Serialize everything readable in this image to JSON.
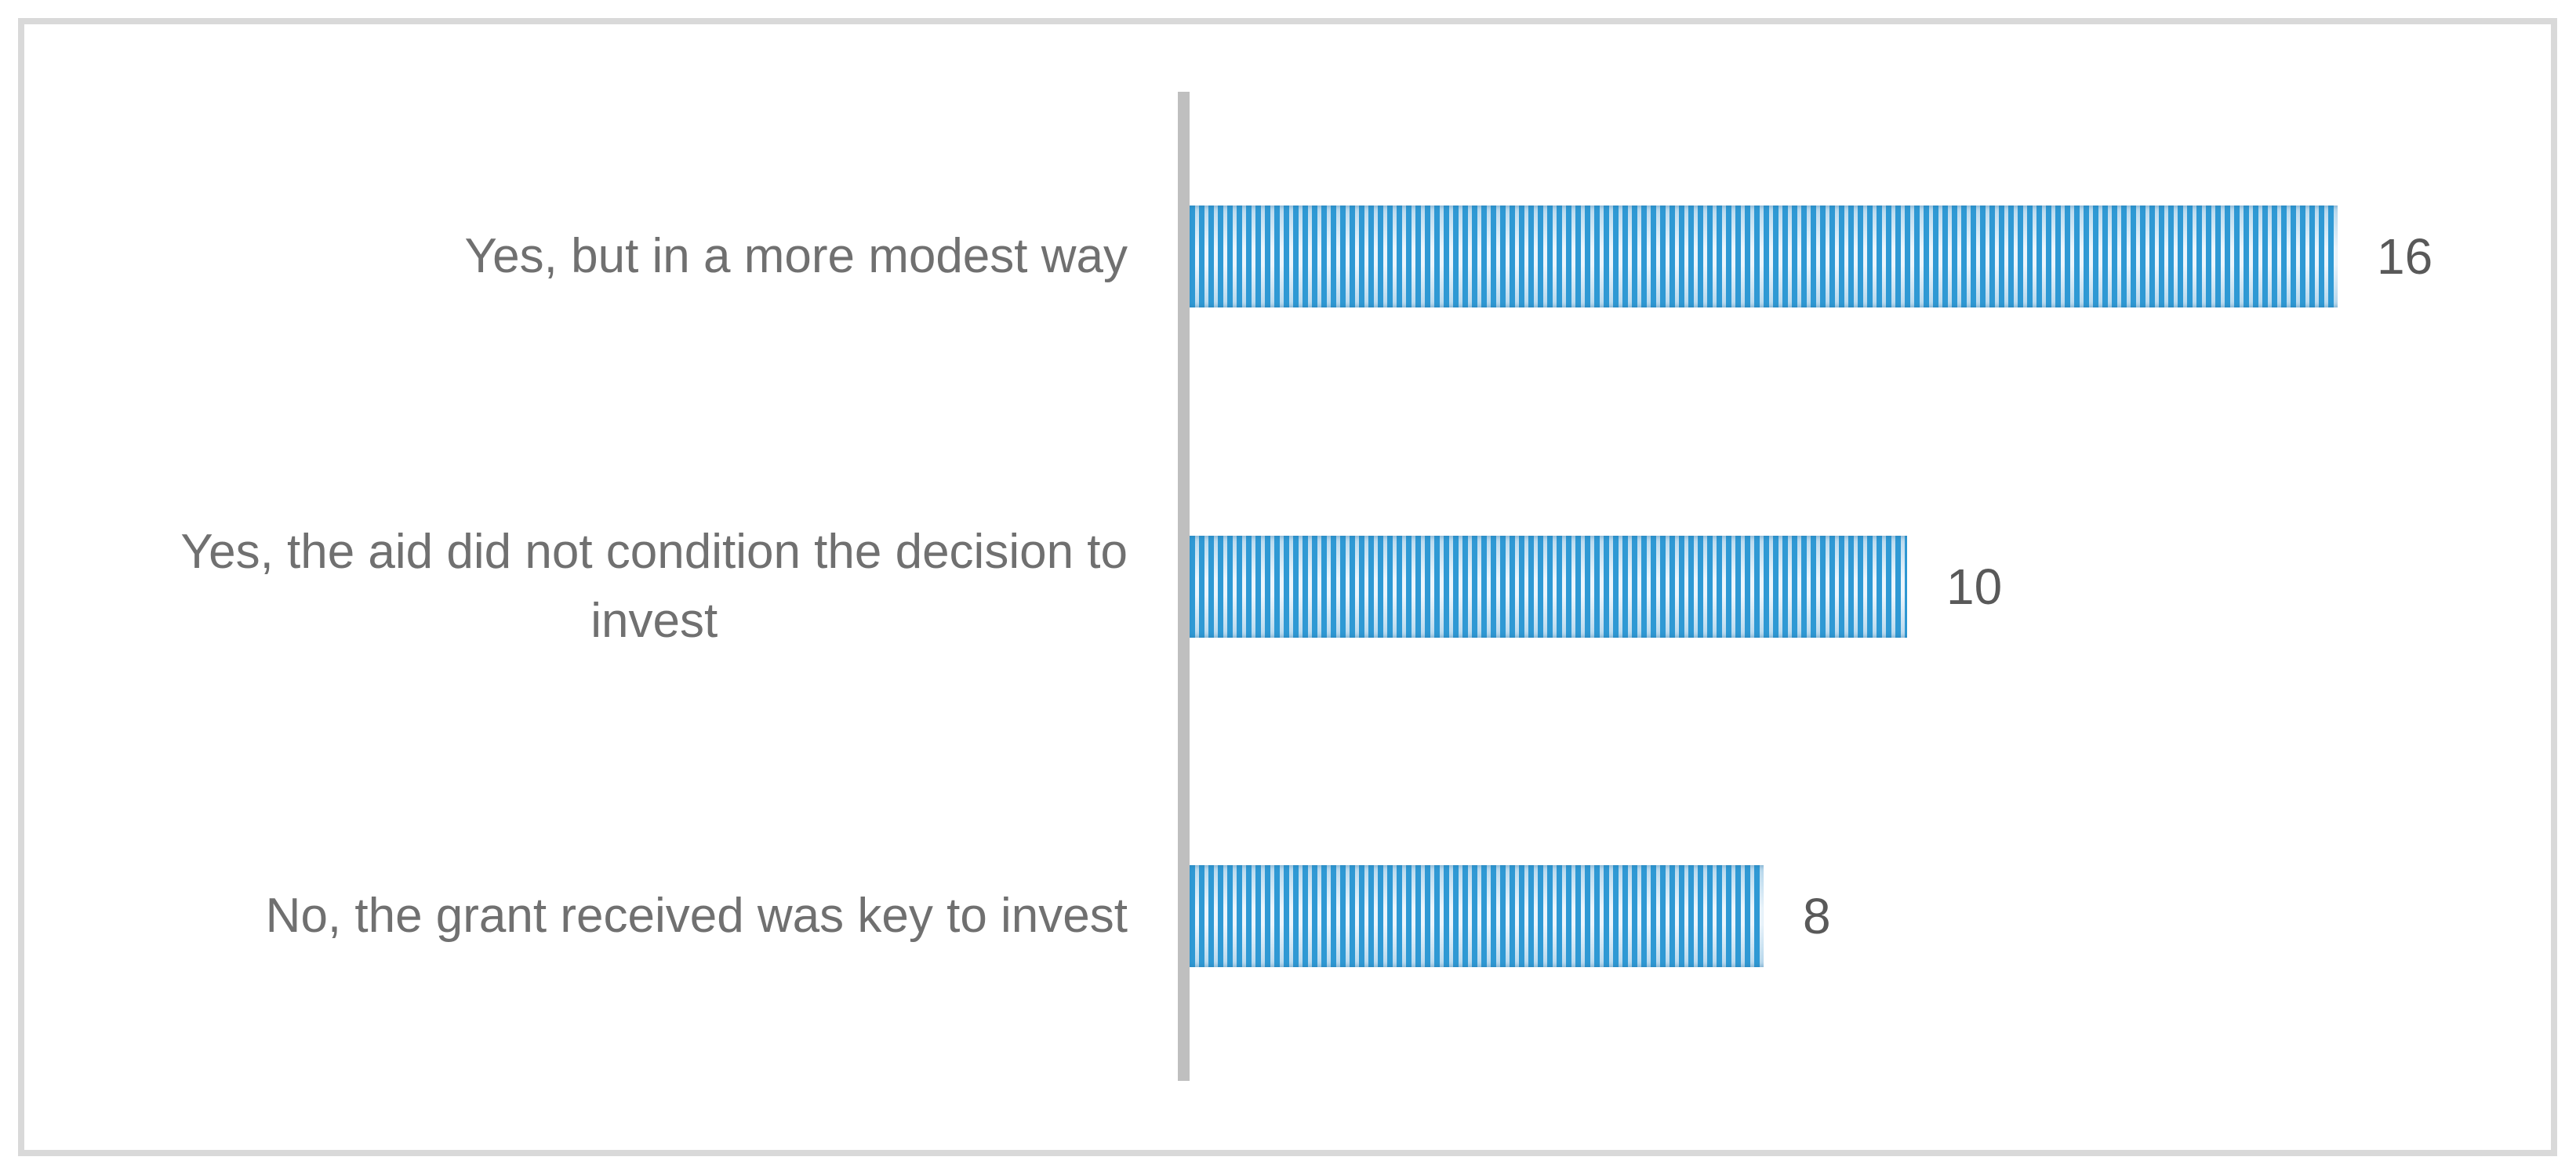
{
  "chart_data": {
    "type": "bar",
    "orientation": "horizontal",
    "title": "",
    "xlabel": "",
    "ylabel": "",
    "categories": [
      "Yes, but in a more modest way",
      "Yes, the aid did not condition the decision to\ninvest",
      "No, the grant received was key to invest"
    ],
    "values": [
      16,
      10,
      8
    ],
    "value_labels": [
      "16",
      "10",
      "8"
    ],
    "xlim": [
      0,
      16
    ],
    "grid": false,
    "legend": false,
    "bar_fill_style": "vertical-stripe-pattern",
    "colors": {
      "bar_stripe_blue": "#2f99d4",
      "bar_stripe_light": "#d9eaf7",
      "bar_edge_tint": "#b5d7ec",
      "axis_line": "#bfbfbf",
      "frame_border": "#d9d9d9",
      "category_label_text": "#707070",
      "value_label_text": "#595959",
      "background": "#ffffff"
    }
  }
}
